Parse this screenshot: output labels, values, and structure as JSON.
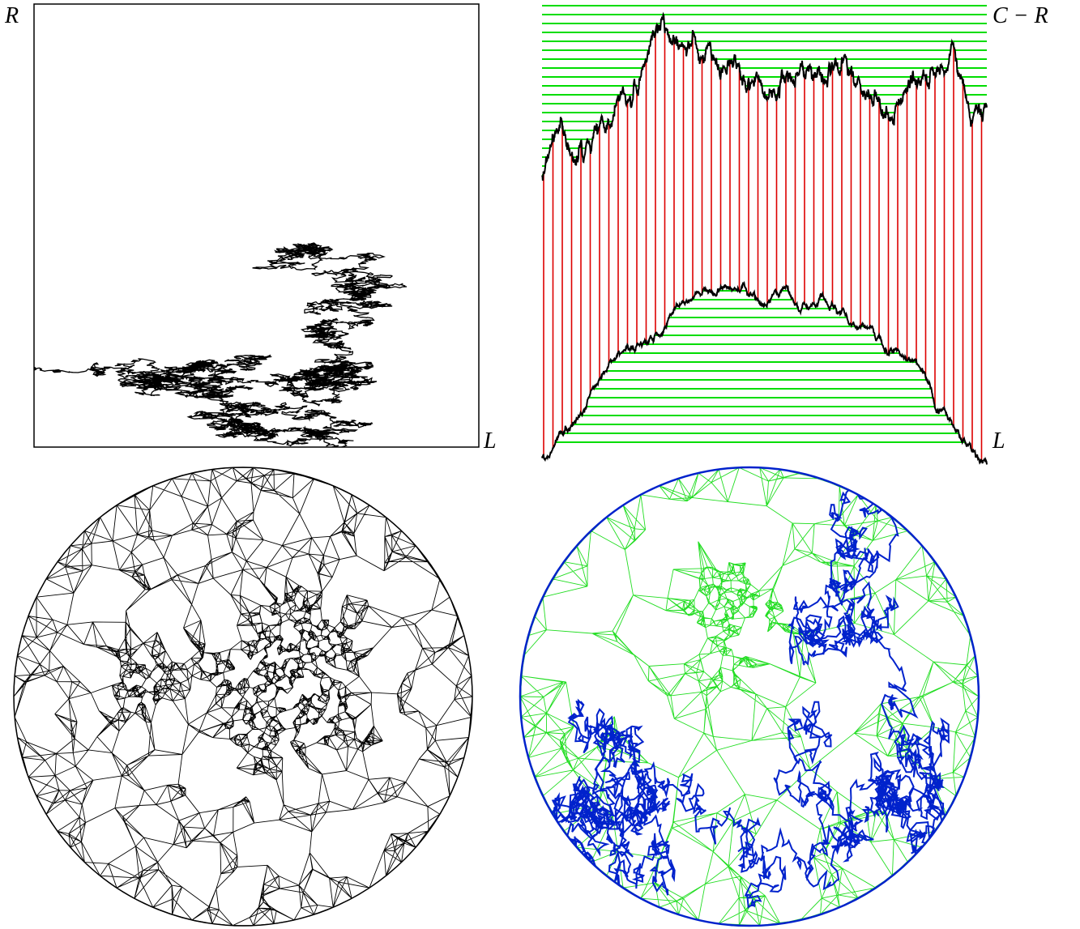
{
  "top_left": {
    "y_label": "R",
    "x_label": "L"
  },
  "top_right": {
    "y_label": "C − R",
    "x_label": "L"
  }
}
